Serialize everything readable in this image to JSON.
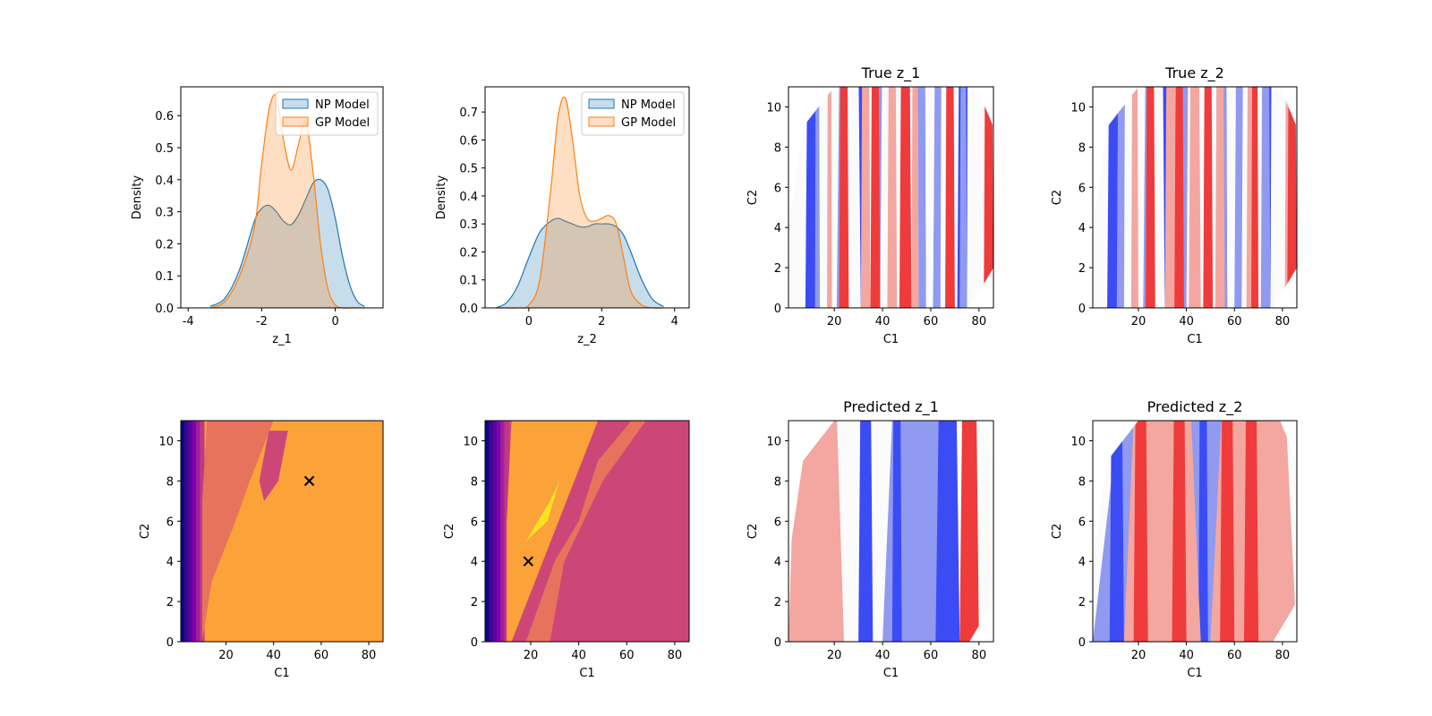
{
  "colors": {
    "np_model": "#1f77b4",
    "gp_model": "#ff7f0e",
    "coolwarm_low": "#0000ff",
    "coolwarm_high": "#ff0000",
    "plasma_dark": "#3a0890",
    "plasma_orange": "#fba238",
    "plasma_salmon": "#e8735d",
    "plasma_magenta": "#cc4778",
    "plasma_yellow": "#f8e221"
  },
  "chart_data": [
    {
      "id": "kde_z1",
      "type": "area",
      "title": "",
      "xlabel": "z_1",
      "ylabel": "Density",
      "xlim": [
        -4.2,
        1.3
      ],
      "ylim": [
        0,
        0.69
      ],
      "xticks": [
        -4,
        -2,
        0
      ],
      "yticks": [
        0.0,
        0.1,
        0.2,
        0.3,
        0.4,
        0.5,
        0.6
      ],
      "legend": {
        "placement": "upper-right",
        "entries": [
          "NP Model",
          "GP Model"
        ]
      },
      "x": [
        -3.4,
        -3.0,
        -2.6,
        -2.2,
        -2.0,
        -1.8,
        -1.6,
        -1.4,
        -1.2,
        -1.0,
        -0.8,
        -0.6,
        -0.4,
        -0.2,
        0.0,
        0.2,
        0.4,
        0.6,
        0.8
      ],
      "series": [
        {
          "name": "NP Model",
          "values": [
            0.005,
            0.03,
            0.12,
            0.27,
            0.31,
            0.32,
            0.3,
            0.27,
            0.26,
            0.29,
            0.34,
            0.39,
            0.4,
            0.37,
            0.28,
            0.16,
            0.07,
            0.02,
            0.005
          ]
        },
        {
          "name": "GP Model",
          "values": [
            0.0,
            0.02,
            0.1,
            0.25,
            0.45,
            0.62,
            0.66,
            0.52,
            0.43,
            0.51,
            0.58,
            0.42,
            0.2,
            0.06,
            0.01,
            0.0,
            0.0,
            0.0,
            0.0
          ]
        }
      ]
    },
    {
      "id": "kde_z2",
      "type": "area",
      "title": "",
      "xlabel": "z_2",
      "ylabel": "Density",
      "xlim": [
        -1.2,
        4.4
      ],
      "ylim": [
        0,
        0.79
      ],
      "xticks": [
        0,
        2,
        4
      ],
      "yticks": [
        0.0,
        0.1,
        0.2,
        0.3,
        0.4,
        0.5,
        0.6,
        0.7
      ],
      "legend": {
        "placement": "upper-right",
        "entries": [
          "NP Model",
          "GP Model"
        ]
      },
      "x": [
        -0.9,
        -0.6,
        -0.3,
        0.0,
        0.3,
        0.6,
        0.8,
        1.0,
        1.2,
        1.4,
        1.6,
        1.8,
        2.0,
        2.2,
        2.4,
        2.6,
        2.8,
        3.1,
        3.4,
        3.7
      ],
      "series": [
        {
          "name": "NP Model",
          "values": [
            0.0,
            0.02,
            0.08,
            0.18,
            0.27,
            0.31,
            0.32,
            0.31,
            0.3,
            0.29,
            0.29,
            0.3,
            0.3,
            0.3,
            0.29,
            0.26,
            0.2,
            0.1,
            0.03,
            0.005
          ]
        },
        {
          "name": "GP Model",
          "values": [
            0.0,
            0.0,
            0.0,
            0.01,
            0.1,
            0.42,
            0.68,
            0.75,
            0.6,
            0.4,
            0.32,
            0.31,
            0.32,
            0.33,
            0.3,
            0.18,
            0.06,
            0.01,
            0.0,
            0.0
          ]
        }
      ]
    },
    {
      "id": "true_z1",
      "type": "heatmap",
      "title": "True z_1",
      "xlabel": "C1",
      "ylabel": "C2",
      "colormap": "coolwarm",
      "xlim": [
        1,
        86
      ],
      "ylim": [
        0,
        11
      ],
      "xticks": [
        20,
        40,
        60,
        80
      ],
      "yticks": [
        0,
        2,
        4,
        6,
        8,
        10
      ],
      "hull": [
        [
          1,
          0
        ],
        [
          76,
          0
        ],
        [
          86,
          2
        ],
        [
          86,
          9
        ],
        [
          79,
          11
        ],
        [
          20,
          11
        ],
        [
          7,
          9
        ],
        [
          1,
          4
        ]
      ],
      "bands": [
        {
          "level": -2,
          "x": [
            8,
            14,
            24,
            33,
            38,
            43,
            55,
            58,
            61,
            67,
            71,
            76,
            80
          ]
        },
        {
          "level": -1,
          "x": [
            12,
            14,
            21,
            29,
            37,
            43,
            54,
            58,
            61,
            66,
            72,
            75,
            79
          ]
        },
        {
          "level": 0,
          "x": [
            15,
            18,
            24,
            31,
            39,
            45,
            52,
            55,
            64,
            67,
            75,
            77,
            84
          ]
        },
        {
          "level": 1,
          "x": [
            17,
            19,
            31,
            35,
            42,
            46,
            52,
            55,
            66,
            69,
            82,
            85
          ]
        },
        {
          "level": 2,
          "x": [
            22,
            26,
            35,
            39,
            47,
            52,
            66,
            70,
            82,
            86
          ]
        }
      ]
    },
    {
      "id": "true_z2",
      "type": "heatmap",
      "title": "True z_2",
      "xlabel": "C1",
      "ylabel": "C2",
      "colormap": "coolwarm",
      "xlim": [
        1,
        86
      ],
      "ylim": [
        0,
        11
      ],
      "xticks": [
        20,
        40,
        60,
        80
      ],
      "yticks": [
        0,
        2,
        4,
        6,
        8,
        10
      ],
      "hull": [
        [
          1,
          0
        ],
        [
          76,
          0
        ],
        [
          86,
          2
        ],
        [
          86,
          9
        ],
        [
          79,
          11
        ],
        [
          20,
          11
        ],
        [
          7,
          9
        ],
        [
          1,
          4
        ]
      ],
      "bands": [
        {
          "level": -2,
          "x": [
            7,
            13,
            25,
            33,
            38,
            43,
            54,
            57,
            61,
            67,
            72,
            76,
            80
          ]
        },
        {
          "level": -1,
          "x": [
            11,
            15,
            22,
            29,
            36,
            42,
            53,
            57,
            60,
            65,
            71,
            75,
            79
          ]
        },
        {
          "level": 0,
          "x": [
            14,
            17,
            25,
            31,
            40,
            45,
            51,
            55,
            63,
            67,
            75,
            78,
            84
          ]
        },
        {
          "level": 1,
          "x": [
            17,
            20,
            31,
            36,
            41,
            46,
            52,
            56,
            65,
            69,
            81,
            84
          ]
        },
        {
          "level": 2,
          "x": [
            23,
            27,
            35,
            39,
            47,
            51,
            67,
            70,
            82,
            86
          ]
        }
      ]
    },
    {
      "id": "acq_1",
      "type": "heatmap",
      "title": "",
      "xlabel": "C1",
      "ylabel": "C2",
      "colormap": "plasma",
      "xlim": [
        1,
        86
      ],
      "ylim": [
        0,
        11
      ],
      "xticks": [
        20,
        40,
        60,
        80
      ],
      "yticks": [
        0,
        2,
        4,
        6,
        8,
        10
      ],
      "marker": {
        "x": 55,
        "y": 8
      }
    },
    {
      "id": "acq_2",
      "type": "heatmap",
      "title": "",
      "xlabel": "C1",
      "ylabel": "C2",
      "colormap": "plasma",
      "xlim": [
        1,
        86
      ],
      "ylim": [
        0,
        11
      ],
      "xticks": [
        20,
        40,
        60,
        80
      ],
      "yticks": [
        0,
        2,
        4,
        6,
        8,
        10
      ],
      "marker": {
        "x": 19,
        "y": 4
      }
    },
    {
      "id": "pred_z1",
      "type": "heatmap",
      "title": "Predicted z_1",
      "xlabel": "C1",
      "ylabel": "C2",
      "colormap": "coolwarm",
      "xlim": [
        1,
        86
      ],
      "ylim": [
        0,
        11
      ],
      "xticks": [
        20,
        40,
        60,
        80
      ],
      "yticks": [
        0,
        2,
        4,
        6,
        8,
        10
      ],
      "hull": [
        [
          1,
          0
        ],
        [
          76,
          0
        ],
        [
          86,
          2
        ],
        [
          86,
          9
        ],
        [
          79,
          11
        ],
        [
          20,
          11
        ],
        [
          7,
          9
        ],
        [
          1,
          4
        ]
      ],
      "bands": [
        {
          "level": 1,
          "x": [
            1,
            24,
            32,
            38
          ]
        },
        {
          "level": 0,
          "x": [
            30,
            48
          ]
        },
        {
          "level": -1,
          "x": [
            40,
            72
          ]
        },
        {
          "level": -2,
          "x": [
            30,
            36,
            44,
            48,
            62,
            72
          ]
        },
        {
          "level": 2,
          "x": [
            72,
            80
          ]
        }
      ]
    },
    {
      "id": "pred_z2",
      "type": "heatmap",
      "title": "Predicted z_2",
      "xlabel": "C1",
      "ylabel": "C2",
      "colormap": "coolwarm",
      "xlim": [
        1,
        86
      ],
      "ylim": [
        0,
        11
      ],
      "xticks": [
        20,
        40,
        60,
        80
      ],
      "yticks": [
        0,
        2,
        4,
        6,
        8,
        10
      ],
      "hull": [
        [
          1,
          0
        ],
        [
          76,
          0
        ],
        [
          86,
          2
        ],
        [
          86,
          9
        ],
        [
          79,
          11
        ],
        [
          20,
          11
        ],
        [
          7,
          9
        ],
        [
          1,
          4
        ]
      ],
      "bands": [
        {
          "level": -1,
          "x": [
            1,
            86
          ]
        },
        {
          "level": -2,
          "x": [
            8,
            14,
            45,
            49,
            58,
            74
          ]
        },
        {
          "level": 1,
          "x": [
            14,
            46,
            50,
            86
          ]
        },
        {
          "level": 2,
          "x": [
            18,
            24,
            34,
            40,
            54,
            60,
            64,
            70
          ]
        }
      ]
    }
  ]
}
